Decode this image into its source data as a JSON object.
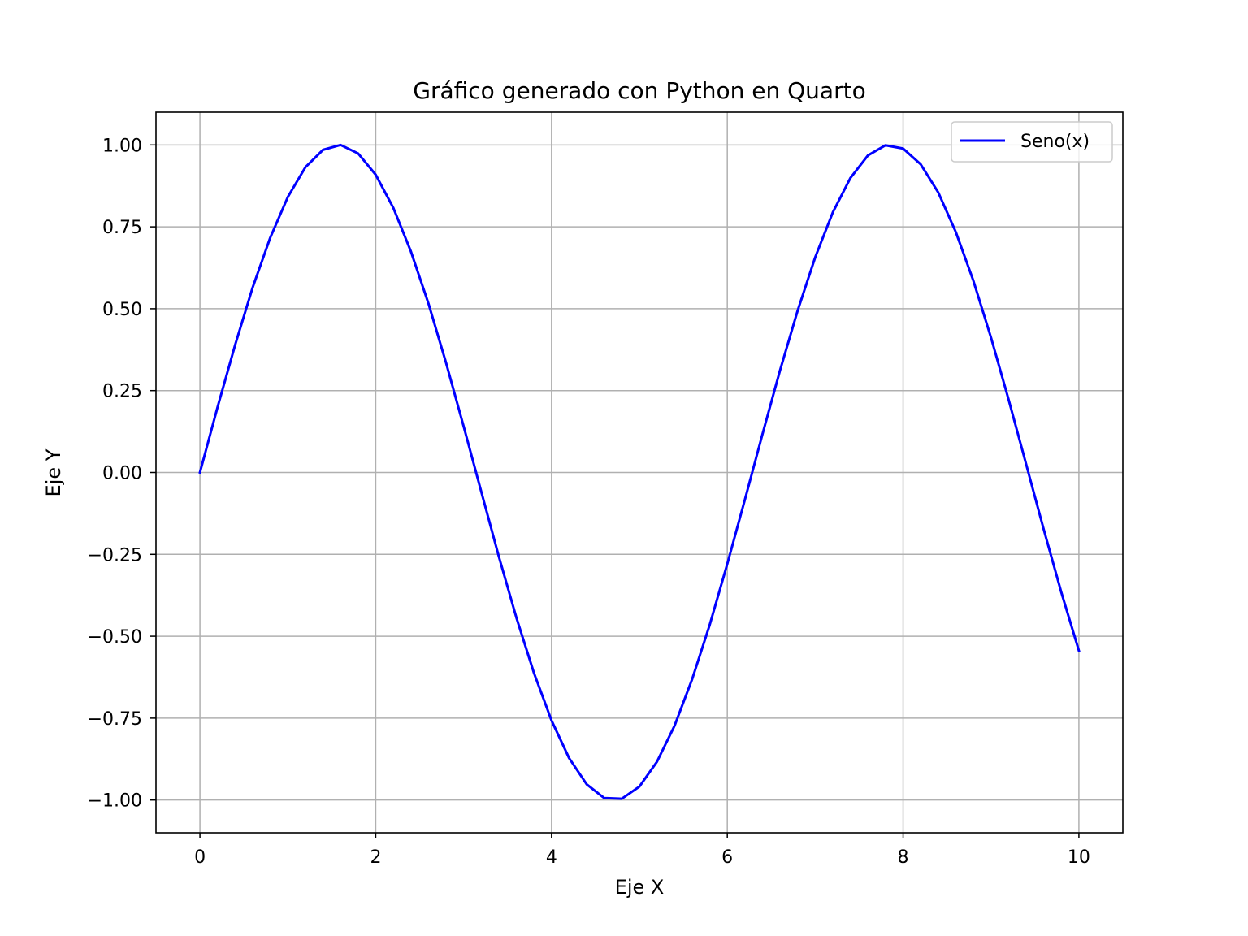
{
  "chart_data": {
    "type": "line",
    "title": "Gráfico generado con Python en Quarto",
    "xlabel": "Eje X",
    "ylabel": "Eje Y",
    "xlim": [
      -0.5,
      10.5
    ],
    "ylim": [
      -1.1,
      1.1
    ],
    "x_ticks": [
      "0",
      "2",
      "4",
      "6",
      "8",
      "10"
    ],
    "y_ticks": [
      "−1.00",
      "−0.75",
      "−0.50",
      "−0.25",
      "0.00",
      "0.25",
      "0.50",
      "0.75",
      "1.00"
    ],
    "grid": true,
    "legend_position": "top-right",
    "series": [
      {
        "name": "Seno(x)",
        "color": "#0000ff",
        "x": [
          0.0,
          0.2,
          0.4,
          0.6,
          0.8,
          1.0,
          1.2,
          1.4,
          1.6,
          1.8,
          2.0,
          2.2,
          2.4,
          2.6,
          2.8,
          3.0,
          3.2,
          3.4,
          3.6,
          3.8,
          4.0,
          4.2,
          4.4,
          4.6,
          4.8,
          5.0,
          5.2,
          5.4,
          5.6,
          5.8,
          6.0,
          6.2,
          6.4,
          6.6,
          6.8,
          7.0,
          7.2,
          7.4,
          7.6,
          7.8,
          8.0,
          8.2,
          8.4,
          8.6,
          8.8,
          9.0,
          9.2,
          9.4,
          9.6,
          9.8,
          10.0
        ],
        "y": [
          0.0,
          0.199,
          0.389,
          0.565,
          0.717,
          0.841,
          0.932,
          0.985,
          1.0,
          0.974,
          0.909,
          0.808,
          0.675,
          0.516,
          0.335,
          0.141,
          -0.058,
          -0.256,
          -0.443,
          -0.612,
          -0.757,
          -0.872,
          -0.952,
          -0.994,
          -0.996,
          -0.959,
          -0.883,
          -0.773,
          -0.631,
          -0.465,
          -0.279,
          -0.083,
          0.117,
          0.312,
          0.494,
          0.657,
          0.794,
          0.899,
          0.968,
          0.999,
          0.989,
          0.941,
          0.855,
          0.734,
          0.585,
          0.412,
          0.223,
          0.025,
          -0.174,
          -0.366,
          -0.544
        ]
      }
    ]
  }
}
